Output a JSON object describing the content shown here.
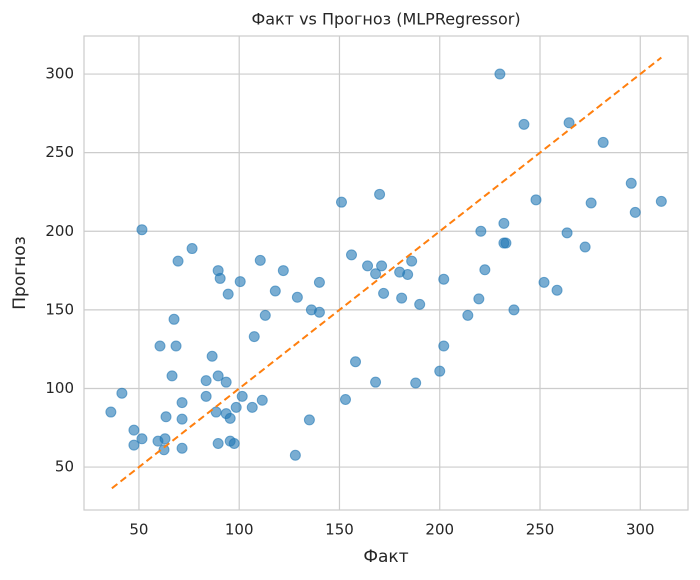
{
  "chart_data": {
    "type": "scatter",
    "title": "Факт vs Прогноз (MLPRegressor)",
    "x_label": "Факт",
    "y_label": "Прогноз",
    "x": [
      36,
      41.5,
      47.5,
      47.5,
      51.5,
      51.5,
      59.5,
      60.5,
      62.5,
      63,
      63.5,
      66.5,
      67.5,
      68.5,
      69.5,
      71.5,
      71.5,
      71.5,
      76.5,
      83.5,
      83.5,
      86.5,
      88.5,
      89.5,
      89.5,
      89.5,
      90.5,
      93.5,
      93.5,
      94.5,
      95.5,
      95.5,
      97.5,
      98.5,
      100.5,
      101.5,
      106.5,
      107.5,
      110.5,
      111.5,
      113,
      118,
      122,
      129,
      128,
      135,
      136,
      140,
      140,
      151,
      153,
      156,
      158,
      164,
      168,
      168,
      170,
      171,
      172,
      180,
      181,
      184,
      186,
      188,
      190,
      200,
      202,
      202,
      214,
      219.5,
      220.5,
      222.5,
      230,
      232,
      233,
      232,
      237,
      242,
      248,
      252,
      258.5,
      263.5,
      264.5,
      272.5,
      275.5,
      281.5,
      295.5,
      297.5,
      310.5
    ],
    "y": [
      85,
      97,
      73.5,
      64,
      68,
      201,
      66.5,
      127,
      61,
      68,
      82,
      108,
      144,
      127,
      181,
      91,
      80.5,
      62,
      189,
      105,
      95,
      120.5,
      85,
      175,
      108,
      65,
      170,
      104,
      84,
      160,
      81,
      66.5,
      65,
      88,
      168,
      95,
      88,
      133,
      181.5,
      92.5,
      146.5,
      162,
      175,
      158,
      57.5,
      80,
      150,
      148.5,
      167.5,
      218.5,
      93,
      185,
      117,
      178,
      173,
      104,
      223.5,
      178,
      160.5,
      174,
      157.5,
      172.5,
      181,
      103.5,
      153.5,
      111,
      127,
      169.5,
      146.5,
      157,
      200,
      175.5,
      300,
      205,
      192.5,
      192.5,
      150,
      268,
      220,
      167.5,
      162.5,
      199,
      269,
      190,
      218,
      256.5,
      230.5,
      212,
      219
    ],
    "color": "#1f77b4",
    "opacity": 0.6,
    "reference_line": {
      "x": [
        36.5,
        310.5
      ],
      "y": [
        36.5,
        310.5
      ],
      "color": "#ff7f0e",
      "dashed": true
    },
    "xlim": [
      22.6,
      323.8
    ],
    "ylim": [
      22.7,
      324.2
    ],
    "xticks": [
      50,
      100,
      150,
      200,
      250,
      300
    ],
    "yticks": [
      50,
      100,
      150,
      200,
      250,
      300
    ],
    "grid": true
  }
}
